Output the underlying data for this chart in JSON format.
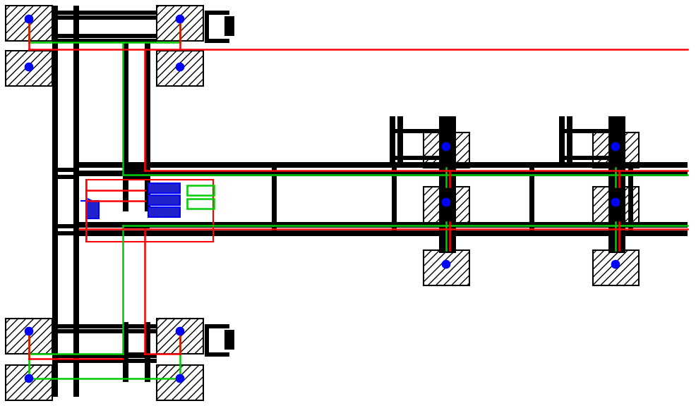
{
  "bg_color": "#ffffff",
  "line_color": "#000000",
  "red_color": "#ff0000",
  "green_color": "#00cc00",
  "blue_color": "#0000ff",
  "figsize": [
    9.87,
    5.86
  ],
  "dpi": 100
}
